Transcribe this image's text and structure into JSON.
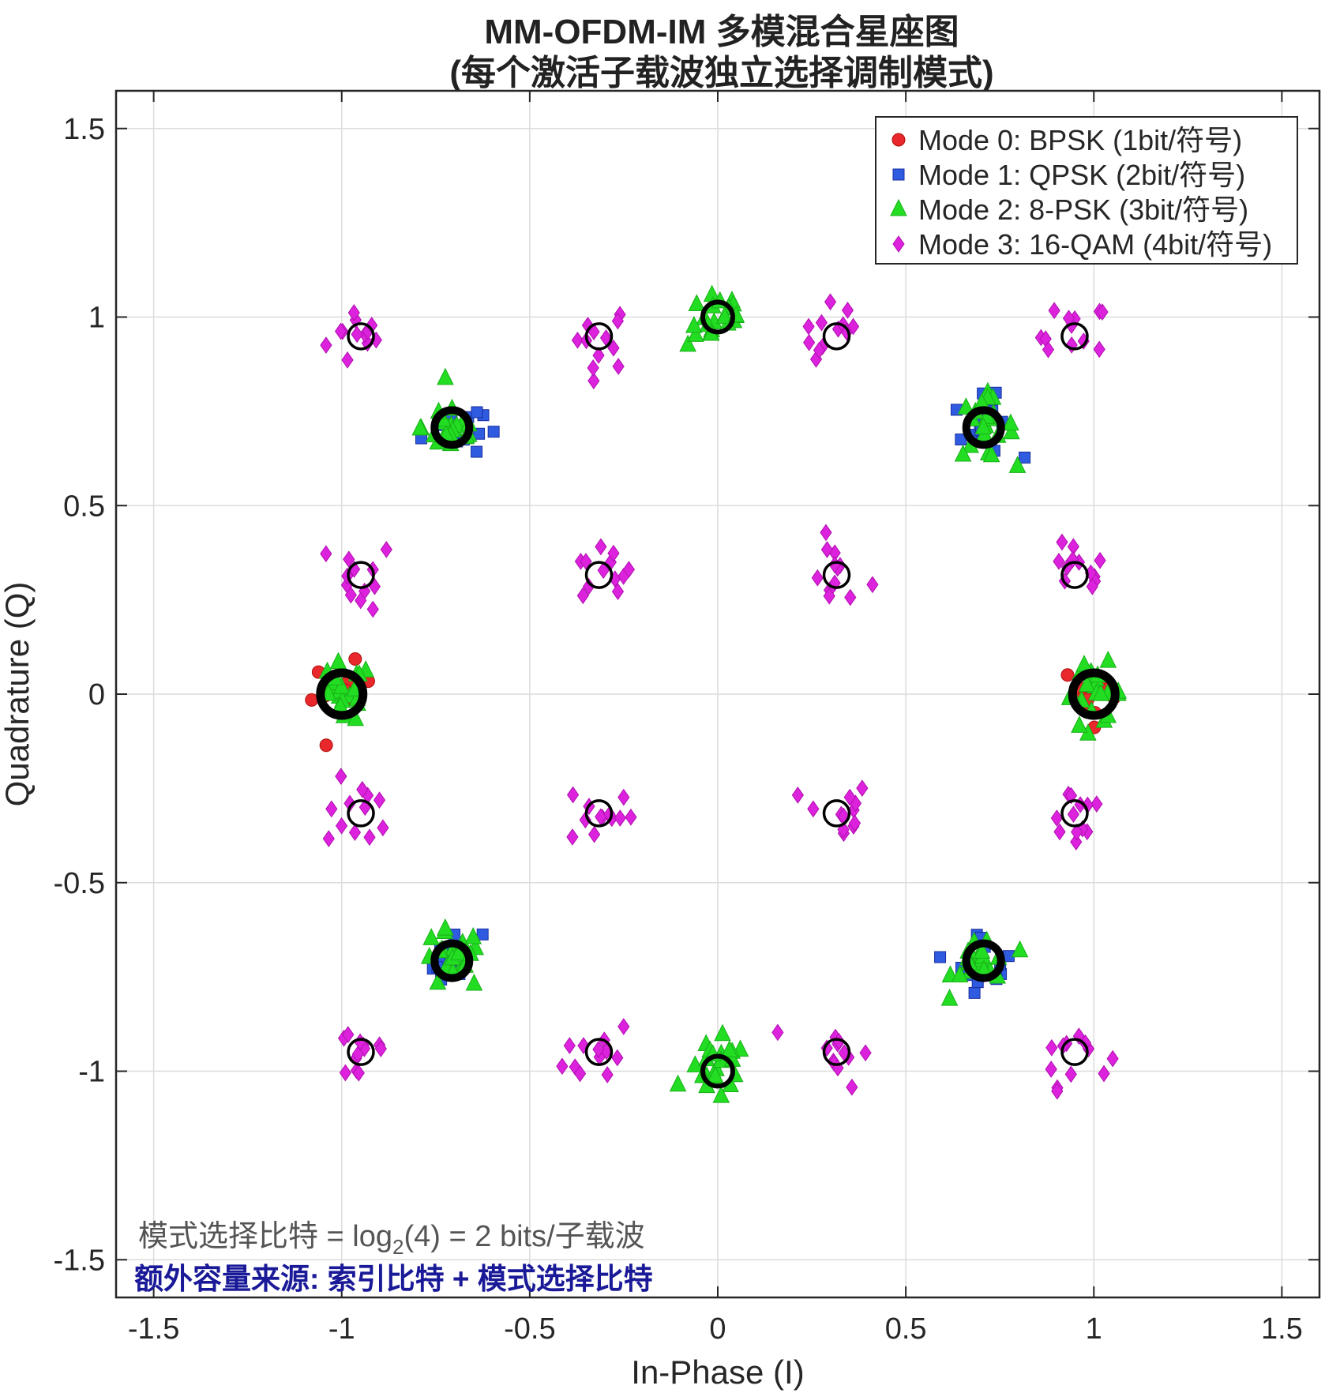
{
  "chart_data": {
    "type": "scatter",
    "title": "MM-OFDM-IM 多模混合星座图",
    "subtitle": "(每个激活子载波独立选择调制模式)",
    "xlabel": "In-Phase (I)",
    "ylabel": "Quadrature (Q)",
    "xlim": [
      -1.6,
      1.6
    ],
    "ylim": [
      -1.6,
      1.6
    ],
    "xticks": [
      "-1.5",
      "-1",
      "-0.5",
      "0",
      "0.5",
      "1",
      "1.5"
    ],
    "yticks": [
      "1.5",
      "1",
      "0.5",
      "0",
      "-0.5",
      "-1",
      "-1.5"
    ],
    "grid": true,
    "legend_position": "top-right",
    "series": [
      {
        "name": "Mode 0: BPSK (1bit/符号)",
        "marker": "circle",
        "color": "#e8282a",
        "centers": [
          [
            -1,
            0
          ],
          [
            1,
            0
          ]
        ],
        "points_per_center": 14,
        "noise_std": 0.04
      },
      {
        "name": "Mode 1: QPSK (2bit/符号)",
        "marker": "square",
        "color": "#2f5be0",
        "centers": [
          [
            0.707,
            0.707
          ],
          [
            -0.707,
            0.707
          ],
          [
            -0.707,
            -0.707
          ],
          [
            0.707,
            -0.707
          ]
        ],
        "points_per_center": 16,
        "noise_std": 0.04
      },
      {
        "name": "Mode 2: 8-PSK (3bit/符号)",
        "marker": "triangle",
        "color": "#22dd22",
        "centers": [
          [
            1,
            0
          ],
          [
            0.707,
            0.707
          ],
          [
            0,
            1
          ],
          [
            -0.707,
            0.707
          ],
          [
            -1,
            0
          ],
          [
            -0.707,
            -0.707
          ],
          [
            0,
            -1
          ],
          [
            0.707,
            -0.707
          ]
        ],
        "points_per_center": 22,
        "noise_std": 0.04
      },
      {
        "name": "Mode 3: 16-QAM (4bit/符号)",
        "marker": "diamond",
        "color": "#dd22dd",
        "centers": [
          [
            -0.949,
            0.949
          ],
          [
            -0.316,
            0.949
          ],
          [
            0.316,
            0.949
          ],
          [
            0.949,
            0.949
          ],
          [
            -0.949,
            0.316
          ],
          [
            -0.316,
            0.316
          ],
          [
            0.316,
            0.316
          ],
          [
            0.949,
            0.316
          ],
          [
            -0.949,
            -0.316
          ],
          [
            -0.316,
            -0.316
          ],
          [
            0.316,
            -0.316
          ],
          [
            0.949,
            -0.316
          ],
          [
            -0.949,
            -0.949
          ],
          [
            -0.316,
            -0.949
          ],
          [
            0.316,
            -0.949
          ],
          [
            0.949,
            -0.949
          ]
        ],
        "points_per_center": 12,
        "noise_std": 0.045
      }
    ],
    "reference_points": {
      "qam16": [
        [
          -0.949,
          0.949
        ],
        [
          -0.316,
          0.949
        ],
        [
          0.316,
          0.949
        ],
        [
          0.949,
          0.949
        ],
        [
          -0.949,
          0.316
        ],
        [
          -0.316,
          0.316
        ],
        [
          0.316,
          0.316
        ],
        [
          0.949,
          0.316
        ],
        [
          -0.949,
          -0.316
        ],
        [
          -0.316,
          -0.316
        ],
        [
          0.316,
          -0.316
        ],
        [
          0.949,
          -0.316
        ],
        [
          -0.949,
          -0.949
        ],
        [
          -0.316,
          -0.949
        ],
        [
          0.316,
          -0.949
        ],
        [
          0.949,
          -0.949
        ]
      ],
      "psk_vertical": [
        [
          0,
          1
        ],
        [
          0,
          -1
        ]
      ],
      "psk_diagonal": [
        [
          0.707,
          0.707
        ],
        [
          -0.707,
          0.707
        ],
        [
          -0.707,
          -0.707
        ],
        [
          0.707,
          -0.707
        ]
      ],
      "bpsk": [
        [
          -1,
          0
        ],
        [
          1,
          0
        ]
      ]
    },
    "annotations": [
      {
        "text_pre": "模式选择比特  =  log",
        "sub": "2",
        "text_post": "(4)  =  2  bits/子载波",
        "color": "#555555"
      },
      {
        "text": "额外容量来源: 索引比特 + 模式选择比特",
        "color": "#1a1a99"
      }
    ]
  }
}
